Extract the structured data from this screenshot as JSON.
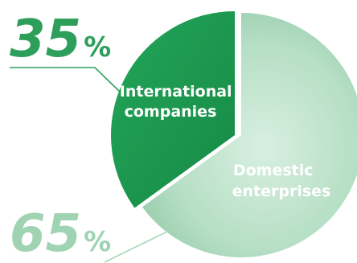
{
  "chart_data": {
    "type": "pie",
    "title": "",
    "slices": [
      {
        "label_line1": "International",
        "label_line2": "companies",
        "value": 35,
        "display": "35",
        "unit": "%",
        "color": "#1f9a4f"
      },
      {
        "label_line1": "Domestic",
        "label_line2": "enterprises",
        "value": 65,
        "display": "65",
        "unit": "%",
        "color": "#a7d8b8"
      }
    ],
    "colors": {
      "intl_value_text": "#2e9e5b",
      "domestic_value_text": "#9fd3b1",
      "intl_leader": "#2e9e5b",
      "domestic_leader": "#a7d8b8"
    }
  }
}
